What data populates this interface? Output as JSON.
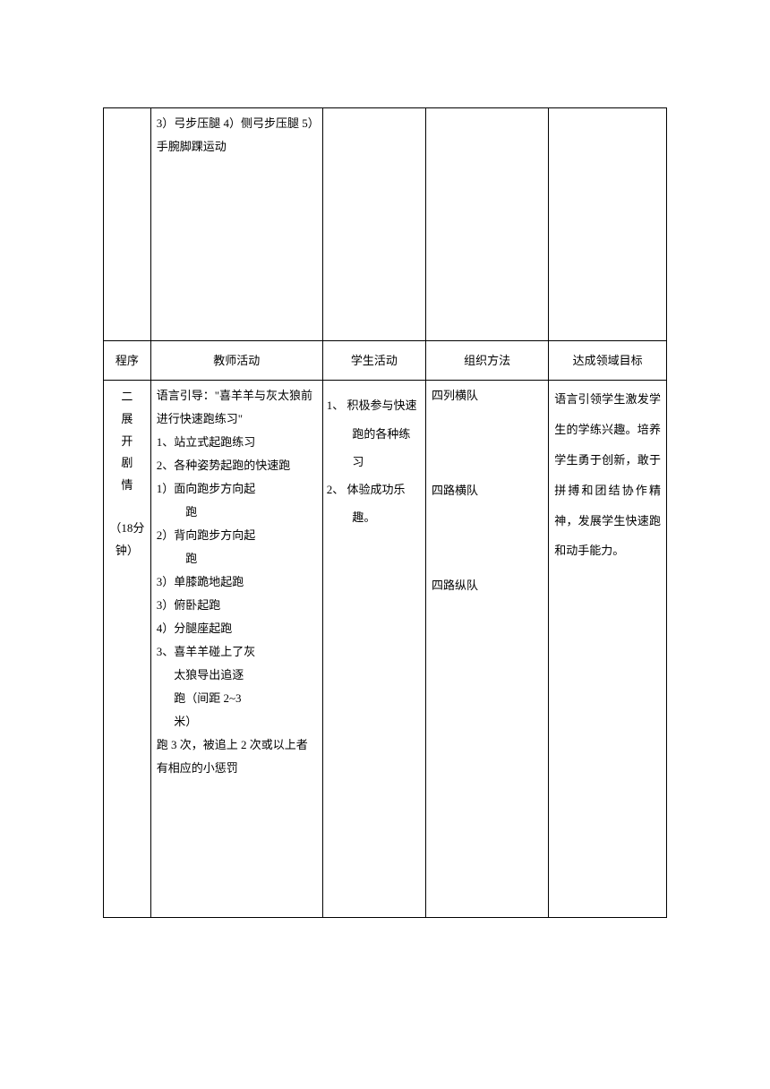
{
  "row1": {
    "teacher_text": "3）弓步压腿 4）侧弓步压腿 5）手腕脚踝运动"
  },
  "headers": {
    "program": "程序",
    "teacher": "教师活动",
    "student": "学生活动",
    "org": "组织方法",
    "goal": "达成领域目标"
  },
  "section2": {
    "program_title": "二展开剧情",
    "program_time": "（18分钟）",
    "teacher": {
      "intro": "语言引导：\"喜羊羊与灰太狼前进行快速跑练习\"",
      "item1": "1、站立式起跑练习",
      "item2": "2、各种姿势起跑的快速跑",
      "sub1": "1）面向跑步方向起跑",
      "sub2": "2）背向跑步方向起跑",
      "sub3": "3）单膝跪地起跑",
      "sub4": "3）俯卧起跑",
      "sub5": "4）分腿座起跑",
      "item3": "3、喜羊羊碰上了灰太狼导出追逐跑（间距 2~3米）",
      "note": "跑 3 次，被追上 2 次或以上者有相应的小惩罚"
    },
    "student": {
      "item1": "1、 积极参与快速跑的各种练习",
      "item2": "2、 体验成功乐趣。"
    },
    "org": {
      "item1": "四列横队",
      "item2": "四路横队",
      "item3": "四路纵队"
    },
    "goal": "语言引领学生激发学生的学练兴趣。培养学生勇于创新，敢于拼搏和团结协作精神，发展学生快速跑和动手能力。"
  }
}
